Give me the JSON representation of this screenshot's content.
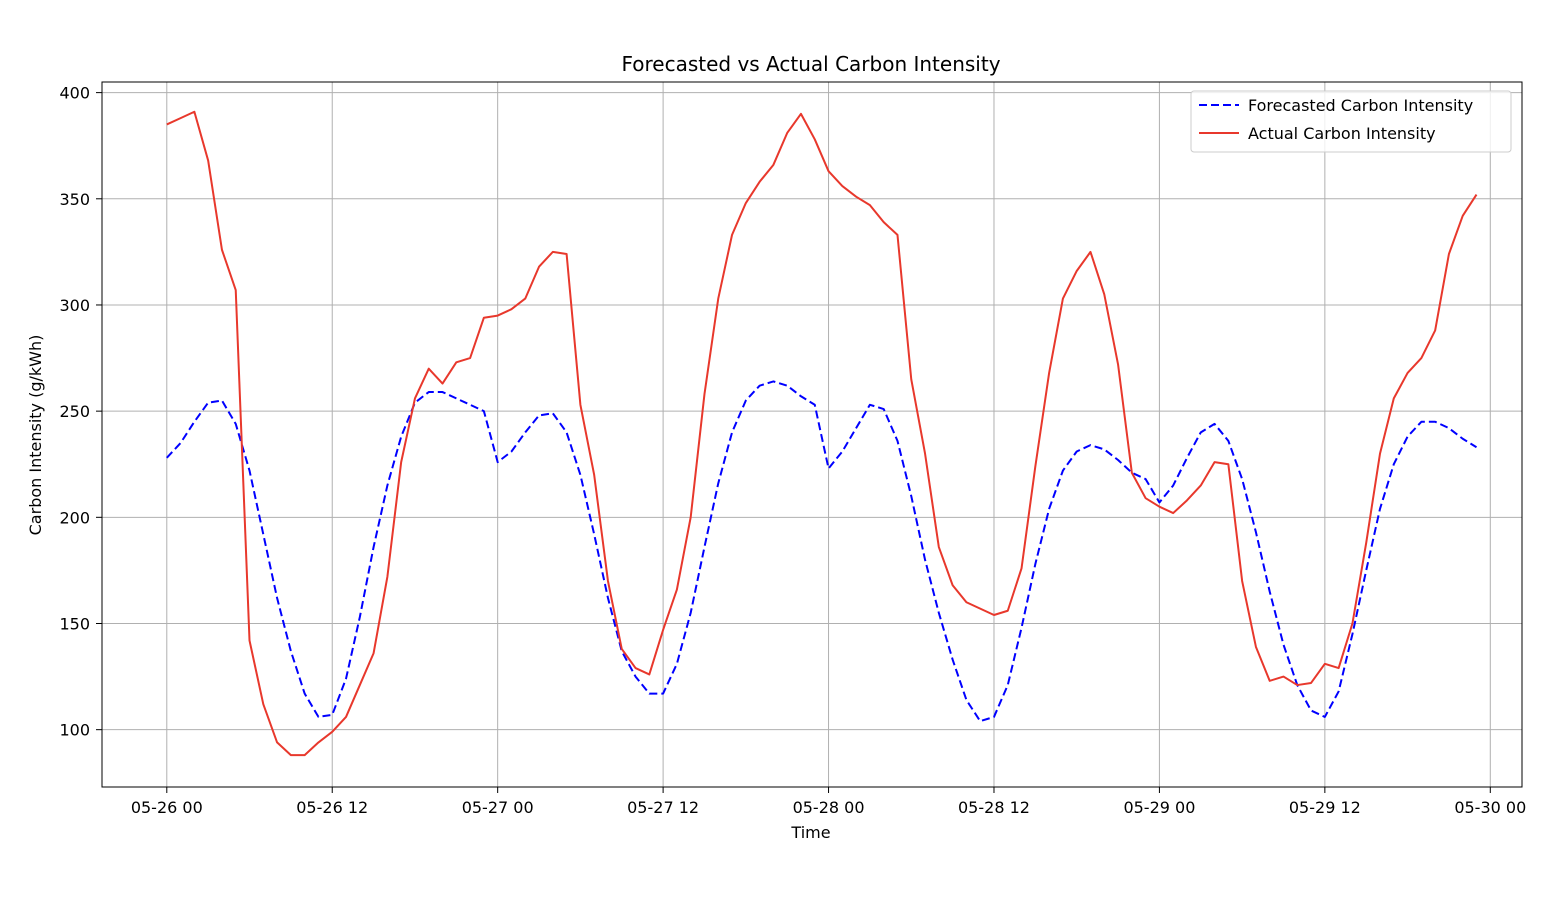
{
  "chart_data": {
    "type": "line",
    "title": "Forecasted vs Actual Carbon Intensity",
    "xlabel": "Time",
    "ylabel": "Carbon Intensity (g/kWh)",
    "ylim": [
      73,
      405
    ],
    "xlim": [
      "2025-05-25 19:18",
      "2025-05-30 02:18"
    ],
    "x_ticks": [
      "05-26 00",
      "05-26 12",
      "05-27 00",
      "05-27 12",
      "05-28 00",
      "05-28 12",
      "05-29 00",
      "05-29 12",
      "05-30 00"
    ],
    "y_ticks": [
      100,
      150,
      200,
      250,
      300,
      350,
      400
    ],
    "grid": true,
    "legend": "top-right",
    "x_start": "2025-05-26 00:00",
    "x_step_hours": 1,
    "series": [
      {
        "name": "Forecasted Carbon Intensity",
        "style": "dashed",
        "color": "#0000ff",
        "values": [
          228,
          235,
          245,
          254,
          255,
          244,
          222,
          192,
          162,
          137,
          117,
          106,
          107,
          124,
          153,
          186,
          215,
          238,
          254,
          259,
          259,
          256,
          253,
          250,
          226,
          231,
          240,
          248,
          249,
          240,
          220,
          192,
          162,
          137,
          125,
          117,
          117,
          131,
          155,
          186,
          216,
          240,
          255,
          262,
          264,
          262,
          257,
          253,
          223,
          231,
          242,
          253,
          251,
          236,
          210,
          180,
          155,
          133,
          114,
          104,
          106,
          121,
          148,
          178,
          204,
          222,
          231,
          234,
          232,
          227,
          221,
          218,
          207,
          215,
          228,
          240,
          244,
          236,
          218,
          193,
          165,
          140,
          121,
          109,
          106,
          118,
          145,
          175,
          204,
          225,
          238,
          245,
          245,
          242,
          237,
          233
        ]
      },
      {
        "name": "Actual Carbon Intensity",
        "style": "solid",
        "color": "#e8382c",
        "values": [
          385,
          388,
          391,
          368,
          326,
          307,
          142,
          112,
          94,
          88,
          88,
          94,
          99,
          106,
          121,
          136,
          172,
          226,
          256,
          270,
          263,
          273,
          275,
          294,
          295,
          298,
          303,
          318,
          325,
          324,
          253,
          220,
          170,
          138,
          129,
          126,
          147,
          166,
          200,
          258,
          303,
          333,
          348,
          358,
          366,
          381,
          390,
          378,
          363,
          356,
          351,
          347,
          339,
          333,
          265,
          230,
          186,
          168,
          160,
          157,
          154,
          156,
          176,
          224,
          268,
          303,
          316,
          325,
          305,
          272,
          221,
          209,
          205,
          202,
          208,
          215,
          226,
          225,
          170,
          139,
          123,
          125,
          121,
          122,
          131,
          129,
          150,
          188,
          230,
          256,
          268,
          275,
          288,
          324,
          342,
          352
        ]
      }
    ]
  }
}
